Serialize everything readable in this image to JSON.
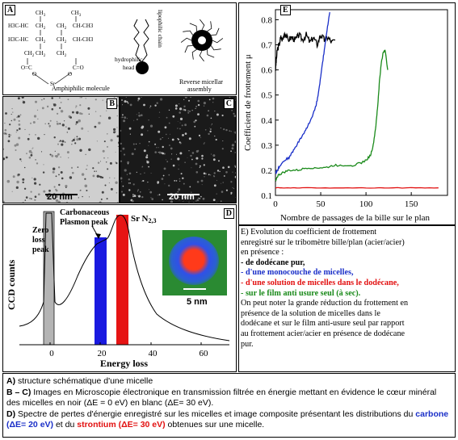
{
  "panelA": {
    "tag": "A",
    "formula_left": [
      "CH3",
      "H3C-HC",
      "H3C-HC",
      "CH2",
      "CH2",
      "CH2",
      "CH2",
      "CH2",
      "CH2",
      "O=C",
      "O",
      "Sr",
      "CH3",
      "CH-CH3",
      "CH-CH3",
      "C=O",
      "O"
    ],
    "lipophilic_label": "lipophilic chain",
    "hydrophilic_label": "hydrophilic head",
    "amphiphilic_label": "Amphiphilic molecule",
    "reverse_label": "Reverse micellar assembly"
  },
  "panelB": {
    "tag": "B",
    "scale": "20 nm"
  },
  "panelC": {
    "tag": "C",
    "scale": "20 nm"
  },
  "panelD": {
    "tag": "D",
    "zero_loss": "Zero loss peak",
    "carbon_peak": "Carbonaceous Plasmon peak",
    "sr_peak": "Sr N",
    "sr_sub": "2,3",
    "ylabel": "CCD counts",
    "xlabel": "Energy loss",
    "inset_scale": "5 nm",
    "colors": {
      "carbon": "#1a1ae0",
      "strontium": "#e61414",
      "zero": "#b4b4b4"
    }
  },
  "chart_data": {
    "type": "line",
    "title": "",
    "tag": "E",
    "xlabel": "Nombre de passages de la bille sur le plan",
    "ylabel": "Coefficient de frottement μ",
    "xlim": [
      0,
      190
    ],
    "ylim": [
      0.1,
      0.84
    ],
    "xticks": [
      "0",
      "50",
      "100",
      "150"
    ],
    "xtick_values": [
      0,
      50,
      100,
      150
    ],
    "yticks": [
      "0.1",
      "0.2",
      "0.3",
      "0.4",
      "0.5",
      "0.6",
      "0.7",
      "0.8"
    ],
    "ytick_values": [
      0.1,
      0.2,
      0.3,
      0.4,
      0.5,
      0.6,
      0.7,
      0.8
    ],
    "series": [
      {
        "color": "#000000",
        "x": [
          0,
          1,
          2,
          4,
          6,
          8,
          10,
          14,
          18,
          22,
          26,
          30,
          34,
          38,
          42,
          46,
          50,
          54,
          58,
          62,
          66
        ],
        "y": [
          0.6,
          0.64,
          0.68,
          0.7,
          0.73,
          0.72,
          0.75,
          0.72,
          0.73,
          0.72,
          0.74,
          0.72,
          0.74,
          0.71,
          0.73,
          0.7,
          0.74,
          0.72,
          0.73,
          0.71,
          0.72
        ]
      },
      {
        "color": "#1a2fc8",
        "x": [
          0,
          2,
          5,
          10,
          15,
          20,
          25,
          30,
          35,
          40,
          45,
          48,
          51,
          54,
          57,
          60
        ],
        "y": [
          0.19,
          0.2,
          0.22,
          0.24,
          0.25,
          0.28,
          0.31,
          0.34,
          0.37,
          0.41,
          0.46,
          0.52,
          0.6,
          0.68,
          0.76,
          0.83
        ]
      },
      {
        "color": "#1a8a1a",
        "x": [
          0,
          3,
          8,
          15,
          25,
          35,
          45,
          55,
          65,
          75,
          85,
          95,
          100,
          105,
          108,
          111,
          113,
          115,
          117,
          119,
          121,
          124
        ],
        "y": [
          0.16,
          0.18,
          0.19,
          0.2,
          0.2,
          0.21,
          0.21,
          0.21,
          0.22,
          0.22,
          0.22,
          0.23,
          0.24,
          0.26,
          0.3,
          0.38,
          0.46,
          0.56,
          0.63,
          0.67,
          0.68,
          0.6
        ]
      },
      {
        "color": "#e21010",
        "x": [
          0,
          10,
          30,
          60,
          90,
          120,
          150,
          180
        ],
        "y": [
          0.13,
          0.13,
          0.13,
          0.13,
          0.13,
          0.13,
          0.13,
          0.13
        ]
      }
    ]
  },
  "panelE_text": {
    "lines": [
      "E) Evolution du coefficient de frottement",
      "enregistré sur le tribomètre bille/plan (acier/acier)",
      "en présence :",
      "- de dodécane pur,",
      "- d'une monocouche de micelles,",
      "- d'une solution de micelles dans le dodécane,",
      "- sur le film anti usure seul (à sec).",
      "On peut noter la grande réduction du frottement en",
      "présence de la solution de micelles dans le",
      "dodécane et sur le film anti-usure seul par rapport",
      "au frottement acier/acier en présence de dodécane",
      "pur."
    ]
  },
  "caption": {
    "a_tag": "A)",
    "a_text": " structure schématique d'une micelle",
    "b_tag": "B – C)",
    "b_text": " Images en Microscopie électronique en transmission filtrée en énergie mettant en évidence le cœur minéral des micelles en noir (ΔE = 0 eV) en blanc (ΔE= 30 eV).",
    "d_tag": "D)",
    "d_text": " Spectre de pertes d'énergie enregistré sur les micelles et image composite présentant les distributions du",
    "d_carbone": "carbone",
    "d_carbone_de": "(ΔE= 20 eV)",
    "d_et": " et  du ",
    "d_sr": "strontium",
    "d_sr_de": "(ΔE= 30 eV)",
    "d_end": "  obtenues sur une micelle."
  }
}
